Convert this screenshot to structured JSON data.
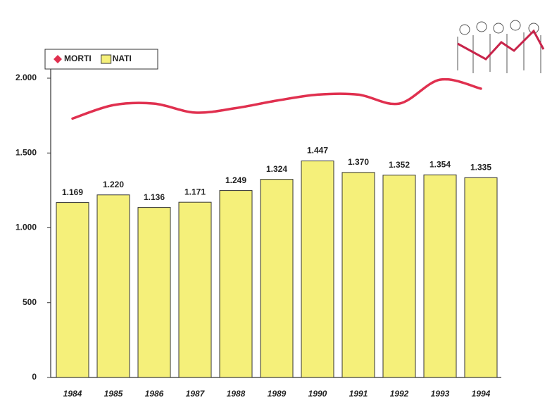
{
  "chart_data": {
    "type": "bar",
    "categories": [
      "1984",
      "1985",
      "1986",
      "1987",
      "1988",
      "1989",
      "1990",
      "1991",
      "1992",
      "1993",
      "1994"
    ],
    "series": [
      {
        "name": "MORTI",
        "type": "line",
        "color": "#e0304f",
        "values": [
          1730,
          1820,
          1830,
          1770,
          1800,
          1850,
          1890,
          1890,
          1830,
          1990,
          1930
        ]
      },
      {
        "name": "NATI",
        "type": "bar",
        "color": "#f5f07a",
        "values": [
          1169,
          1220,
          1136,
          1171,
          1249,
          1324,
          1447,
          1370,
          1352,
          1354,
          1335
        ],
        "value_labels": [
          "1.169",
          "1.220",
          "1.136",
          "1.171",
          "1.249",
          "1.324",
          "1.447",
          "1.370",
          "1.352",
          "1.354",
          "1.335"
        ]
      }
    ],
    "ylim": [
      0,
      2000
    ],
    "yticks": [
      0,
      500,
      {
        "value": 1000,
        "label": "1.000"
      },
      {
        "value": 1500,
        "label": "1.500"
      },
      {
        "value": 2000,
        "label": "2.000"
      }
    ],
    "legend": "top-left",
    "grid": false
  }
}
